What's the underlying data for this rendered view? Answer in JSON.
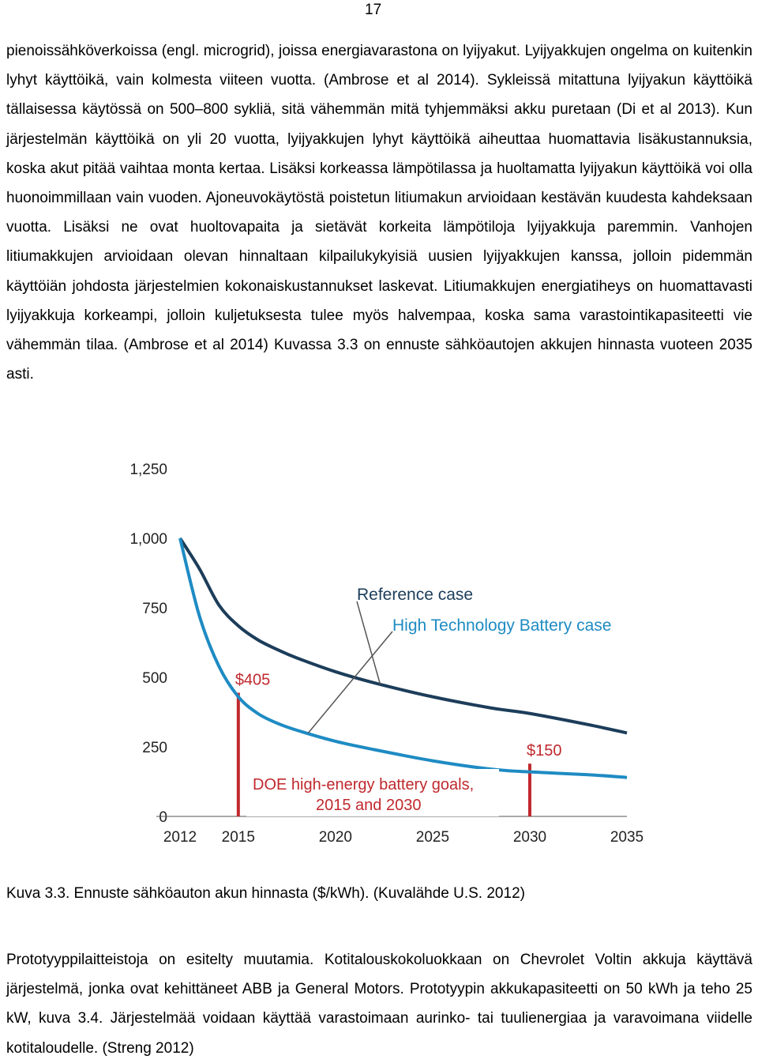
{
  "page": {
    "number": "17",
    "paragraph_1": "pienoissähköverkoissa (engl. microgrid), joissa energiavarastona on lyijyakut. Lyijyakkujen ongelma on kuitenkin lyhyt käyttöikä, vain kolmesta viiteen vuotta. (Ambrose et al 2014). Sykleissä mitattuna lyijyakun käyttöikä tällaisessa käytössä on 500–800 sykliä, sitä vähemmän mitä tyhjemmäksi akku puretaan (Di et al 2013). Kun järjestelmän käyttöikä on yli 20 vuotta, lyijyakkujen lyhyt käyttöikä aiheuttaa huomattavia lisäkustannuksia, koska akut pitää vaihtaa monta kertaa. Lisäksi korkeassa lämpötilassa ja huoltamatta lyijyakun käyttöikä voi olla huonoimmillaan vain vuoden. Ajoneuvokäytöstä poistetun litiumakun arvioidaan kestävän kuudesta kahdeksaan vuotta. Lisäksi ne ovat huoltovapaita ja sietävät korkeita lämpötiloja lyijyakkuja paremmin. Vanhojen litiumakkujen arvioidaan olevan hinnaltaan kilpailukykyisiä uusien lyijyakkujen kanssa, jolloin pidemmän käyttöiän johdosta järjestelmien kokonaiskustannukset laskevat. Litiumakkujen energiatiheys on huomattavasti lyijyakkuja korkeampi, jolloin kuljetuksesta tulee myös halvempaa, koska sama varastointikapasiteetti vie vähemmän tilaa. (Ambrose et al 2014) Kuvassa 3.3 on ennuste sähköautojen akkujen hinnasta vuoteen 2035 asti.",
    "caption": "Kuva 3.3. Ennuste sähköauton akun hinnasta ($/kWh). (Kuvalähde U.S. 2012)",
    "paragraph_2": "Prototyyppilaitteistoja on esitelty muutamia. Kotitalouskokoluokkaan on Chevrolet Voltin akkuja käyttävä järjestelmä, jonka ovat kehittäneet ABB ja General Motors. Prototyypin akkukapasiteetti on 50 kWh ja teho 25 kW, kuva 3.4. Järjestelmää voidaan käyttää varastoimaan aurinko- tai tuulienergiaa ja varavoimana viidelle kotitaloudelle. (Streng 2012)"
  },
  "chart_data": {
    "type": "line",
    "title": "",
    "xlabel": "",
    "ylabel": "",
    "xlim": [
      2012,
      2035
    ],
    "ylim": [
      0,
      1250
    ],
    "x_ticks": [
      "2012",
      "2015",
      "2020",
      "2025",
      "2030",
      "2035"
    ],
    "y_ticks": [
      "0",
      "250",
      "500",
      "750",
      "1,000",
      "1,250"
    ],
    "grid": false,
    "series": [
      {
        "name": "Reference case",
        "color": "#1c3d5a",
        "x": [
          2012,
          2013,
          2014,
          2015,
          2016,
          2017,
          2018,
          2020,
          2022,
          2025,
          2028,
          2030,
          2033,
          2035
        ],
        "y": [
          1000,
          890,
          760,
          685,
          635,
          600,
          570,
          520,
          480,
          430,
          390,
          370,
          330,
          300
        ]
      },
      {
        "name": "High Technology Battery case",
        "color": "#1e8bc3",
        "x": [
          2012,
          2013,
          2014,
          2015,
          2016,
          2017,
          2018,
          2020,
          2022,
          2025,
          2028,
          2030,
          2033,
          2035
        ],
        "y": [
          1000,
          720,
          540,
          430,
          370,
          335,
          310,
          270,
          240,
          200,
          170,
          160,
          150,
          140
        ]
      }
    ],
    "markers": [
      {
        "x": 2015,
        "value": 405,
        "label": "$405",
        "color": "#c0292e"
      },
      {
        "x": 2030,
        "value": 150,
        "label": "$150",
        "color": "#c0292e"
      }
    ],
    "annotation": {
      "line1": "DOE high-energy battery goals,",
      "line2": "2015 and 2030",
      "color": "#c0292e"
    }
  }
}
